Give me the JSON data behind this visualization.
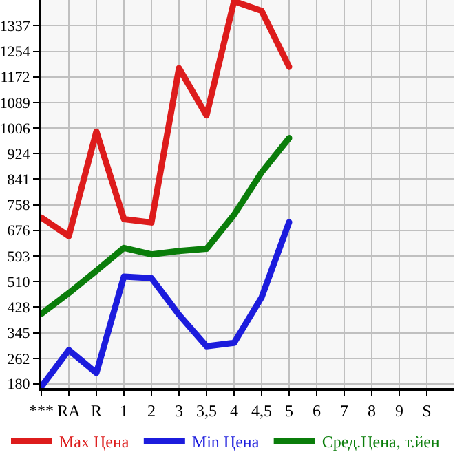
{
  "chart_data": {
    "type": "line",
    "categories": [
      "***",
      "RA",
      "R",
      "1",
      "2",
      "3",
      "3,5",
      "4",
      "4,5",
      "5",
      "6",
      "7",
      "8",
      "9",
      "S"
    ],
    "series": [
      {
        "name": "Max Цена",
        "color": "#dd1c1c",
        "values": [
          717,
          657,
          995,
          712,
          701,
          1200,
          1047,
          1416,
          1385,
          1204,
          null,
          null,
          null,
          null,
          null
        ]
      },
      {
        "name": "Min Цена",
        "color": "#1c1cdd",
        "values": [
          170,
          289,
          215,
          526,
          521,
          403,
          301,
          312,
          459,
          702,
          null,
          null,
          null,
          null,
          null
        ]
      },
      {
        "name": "Сред.Цена, т.йен",
        "color": "#0a7d0a",
        "values": [
          406,
          473,
          545,
          619,
          598,
          609,
          616,
          726,
          863,
          974,
          null,
          null,
          null,
          null,
          null
        ]
      }
    ],
    "ylim": [
      166,
      1420
    ],
    "yticks": [
      180,
      262,
      345,
      428,
      510,
      593,
      676,
      758,
      841,
      924,
      1006,
      1089,
      1172,
      1254,
      1337
    ],
    "grid": true,
    "legend": "bottom",
    "marker": "none",
    "line_style": "solid"
  }
}
